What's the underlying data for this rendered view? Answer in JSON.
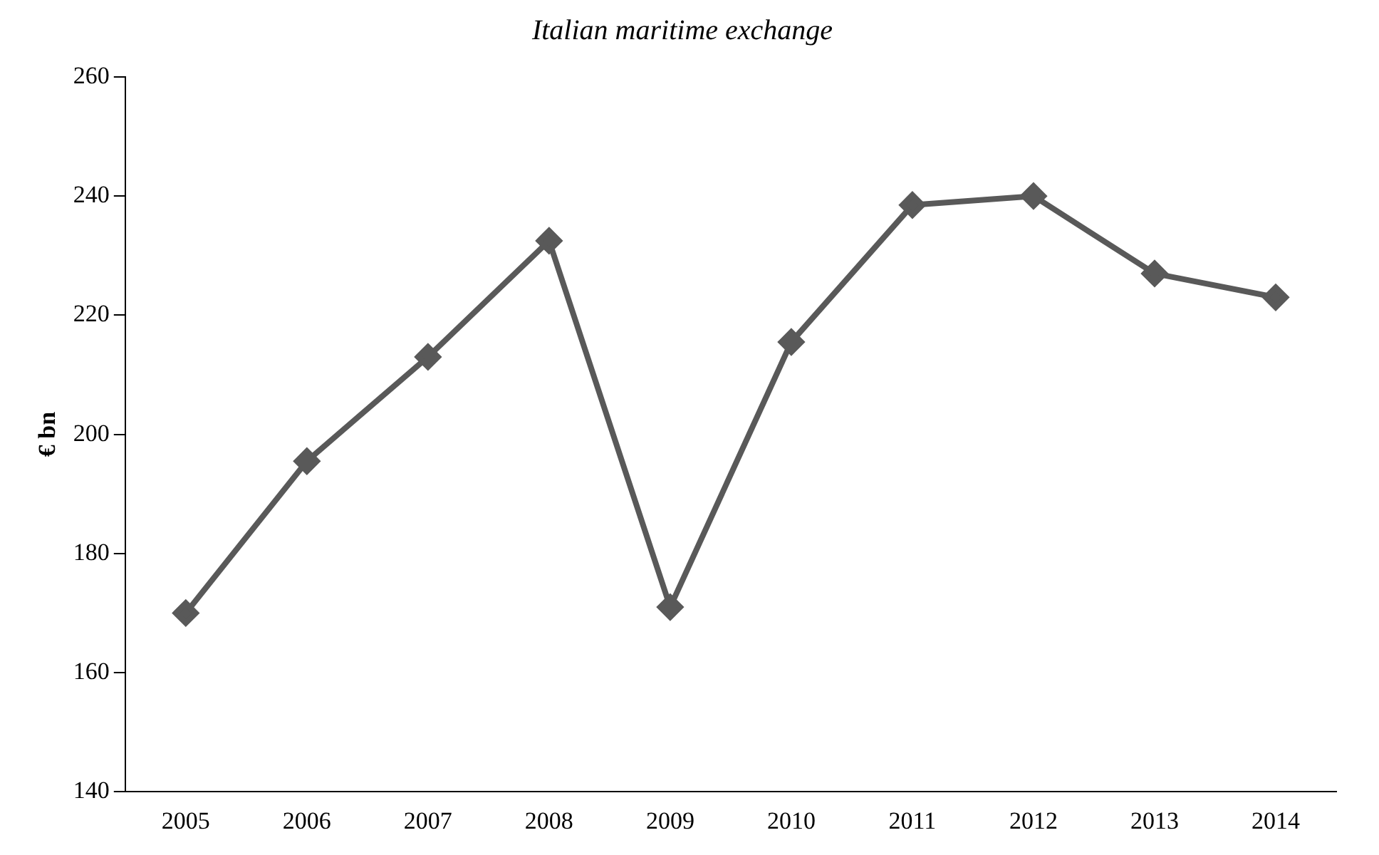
{
  "chart_data": {
    "type": "line",
    "title": "Italian maritime exchange",
    "ylabel": "€ bn",
    "categories": [
      "2005",
      "2006",
      "2007",
      "2008",
      "2009",
      "2010",
      "2011",
      "2012",
      "2013",
      "2014"
    ],
    "series": [
      {
        "color": "#595959",
        "values": [
          170,
          195.5,
          213,
          232.5,
          171,
          215.5,
          238.5,
          240,
          227,
          223
        ]
      }
    ],
    "ylim": [
      140,
      260
    ],
    "yticks": [
      140,
      160,
      180,
      200,
      220,
      240,
      260
    ],
    "grid": false,
    "legend": false,
    "marker": "diamond",
    "line_style": "solid"
  }
}
